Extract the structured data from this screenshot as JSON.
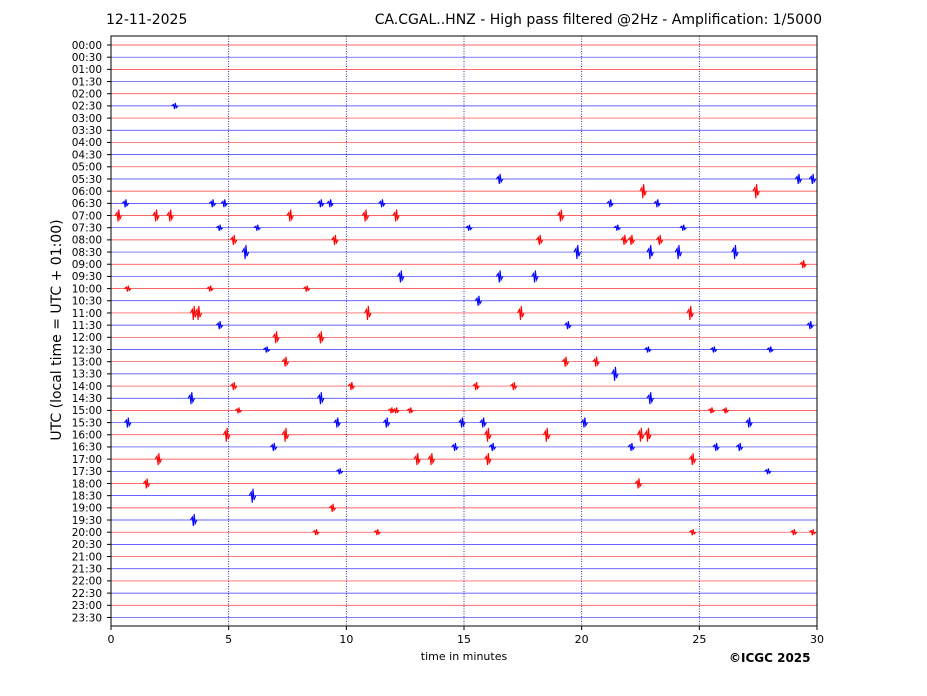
{
  "header": {
    "date": "12-11-2025",
    "station": "CA.CGAL..HNZ - High pass filtered @2Hz - Amplification: 1/5000"
  },
  "footer": {
    "copyright": "©ICGC 2025"
  },
  "colors": {
    "red_trace": "#ff0000",
    "blue_trace": "#0000ff",
    "grid": "#00008b",
    "frame": "#000000"
  },
  "chart_data": {
    "type": "line",
    "title": "CA.CGAL..HNZ - High pass filtered @2Hz - Amplification: 1/5000",
    "xlabel": "time in minutes",
    "ylabel": "UTC (local time = UTC + 01:00)",
    "xlim": [
      0,
      30
    ],
    "x_ticks": [
      0,
      5,
      10,
      15,
      20,
      25,
      30
    ],
    "x_tick_labels": [
      "0",
      "5",
      "10",
      "15",
      "20",
      "25",
      "30"
    ],
    "vertical_grid": true,
    "vertical_grid_at": [
      5,
      10,
      15,
      20,
      25
    ],
    "row_colors": [
      "red",
      "blue"
    ],
    "rows": [
      "00:00",
      "00:30",
      "01:00",
      "01:30",
      "02:00",
      "02:30",
      "03:00",
      "03:30",
      "04:00",
      "04:30",
      "05:00",
      "05:30",
      "06:00",
      "06:30",
      "07:00",
      "07:30",
      "08:00",
      "08:30",
      "09:00",
      "09:30",
      "10:00",
      "10:30",
      "11:00",
      "11:30",
      "12:00",
      "12:30",
      "13:00",
      "13:30",
      "14:00",
      "14:30",
      "15:00",
      "15:30",
      "16:00",
      "16:30",
      "17:00",
      "17:30",
      "18:00",
      "18:30",
      "19:00",
      "19:30",
      "20:00",
      "20:30",
      "21:00",
      "21:30",
      "22:00",
      "22:30",
      "23:00",
      "23:30"
    ],
    "events": [
      {
        "row": "02:30",
        "minutes": [
          2.7
        ]
      },
      {
        "row": "05:30",
        "minutes": [
          16.5,
          29.2,
          29.8
        ]
      },
      {
        "row": "06:00",
        "minutes": [
          22.6,
          27.4
        ]
      },
      {
        "row": "06:30",
        "minutes": [
          0.6,
          4.3,
          4.8,
          8.9,
          9.3,
          11.5,
          21.2,
          23.2
        ]
      },
      {
        "row": "07:00",
        "minutes": [
          0.3,
          1.9,
          2.5,
          7.6,
          10.8,
          12.1,
          19.1
        ]
      },
      {
        "row": "07:30",
        "minutes": [
          4.6,
          6.2,
          15.2,
          21.5,
          24.3
        ]
      },
      {
        "row": "08:00",
        "minutes": [
          5.2,
          9.5,
          18.2,
          21.8,
          22.1,
          23.3
        ]
      },
      {
        "row": "08:30",
        "minutes": [
          5.7,
          19.8,
          22.9,
          24.1,
          26.5
        ]
      },
      {
        "row": "09:00",
        "minutes": [
          29.4
        ]
      },
      {
        "row": "09:30",
        "minutes": [
          12.3,
          16.5,
          18.0
        ]
      },
      {
        "row": "10:00",
        "minutes": [
          0.7,
          4.2,
          8.3
        ]
      },
      {
        "row": "10:30",
        "minutes": [
          15.6
        ]
      },
      {
        "row": "11:00",
        "minutes": [
          3.5,
          3.7,
          10.9,
          17.4,
          24.6
        ]
      },
      {
        "row": "11:30",
        "minutes": [
          4.6,
          19.4,
          29.7
        ]
      },
      {
        "row": "12:00",
        "minutes": [
          7.0,
          8.9
        ]
      },
      {
        "row": "12:30",
        "minutes": [
          6.6,
          22.8,
          25.6,
          28.0
        ]
      },
      {
        "row": "13:00",
        "minutes": [
          7.4,
          19.3,
          20.6
        ]
      },
      {
        "row": "13:30",
        "minutes": [
          21.4
        ]
      },
      {
        "row": "14:00",
        "minutes": [
          5.2,
          10.2,
          15.5,
          17.1
        ]
      },
      {
        "row": "14:30",
        "minutes": [
          3.4,
          8.9,
          22.9
        ]
      },
      {
        "row": "15:00",
        "minutes": [
          5.4,
          11.9,
          12.1,
          12.7,
          25.5,
          26.1
        ]
      },
      {
        "row": "15:30",
        "minutes": [
          0.7,
          9.6,
          11.7,
          14.9,
          15.8,
          20.1,
          27.1
        ]
      },
      {
        "row": "16:00",
        "minutes": [
          4.9,
          7.4,
          16.0,
          18.5,
          22.5,
          22.8
        ]
      },
      {
        "row": "16:30",
        "minutes": [
          6.9,
          14.6,
          16.2,
          22.1,
          25.7,
          26.7
        ]
      },
      {
        "row": "17:00",
        "minutes": [
          2.0,
          13.0,
          13.6,
          16.0,
          24.7
        ]
      },
      {
        "row": "17:30",
        "minutes": [
          9.7,
          27.9
        ]
      },
      {
        "row": "18:00",
        "minutes": [
          1.5,
          22.4
        ]
      },
      {
        "row": "18:30",
        "minutes": [
          6.0
        ]
      },
      {
        "row": "19:00",
        "minutes": [
          9.4
        ]
      },
      {
        "row": "19:30",
        "minutes": [
          3.5
        ]
      },
      {
        "row": "20:00",
        "minutes": [
          8.7,
          11.3,
          24.7,
          29.0,
          29.8
        ]
      }
    ]
  }
}
